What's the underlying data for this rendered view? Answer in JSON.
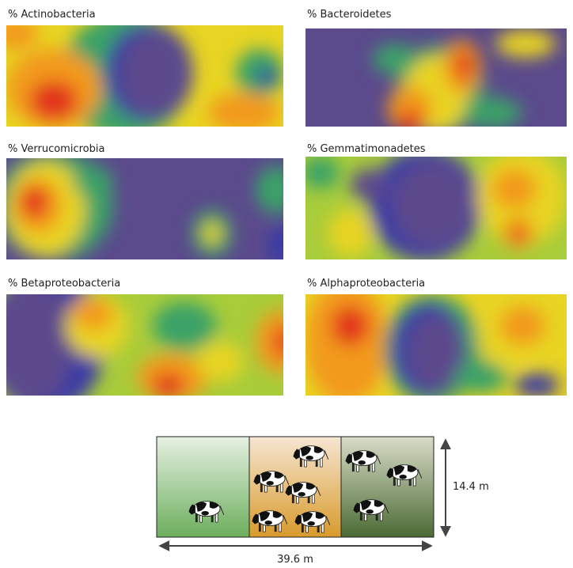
{
  "panels": [
    {
      "title": "% Actinobacteria"
    },
    {
      "title": "% Bacteroidetes"
    },
    {
      "title": "% Verrucomicrobia"
    },
    {
      "title": "% Gemmatimonadetes"
    },
    {
      "title": "% Betaproteobacteria"
    },
    {
      "title": "% Alphaproteobacteria"
    }
  ],
  "diagram": {
    "height_label": "14.4 m",
    "width_label": "39.6 m"
  }
}
